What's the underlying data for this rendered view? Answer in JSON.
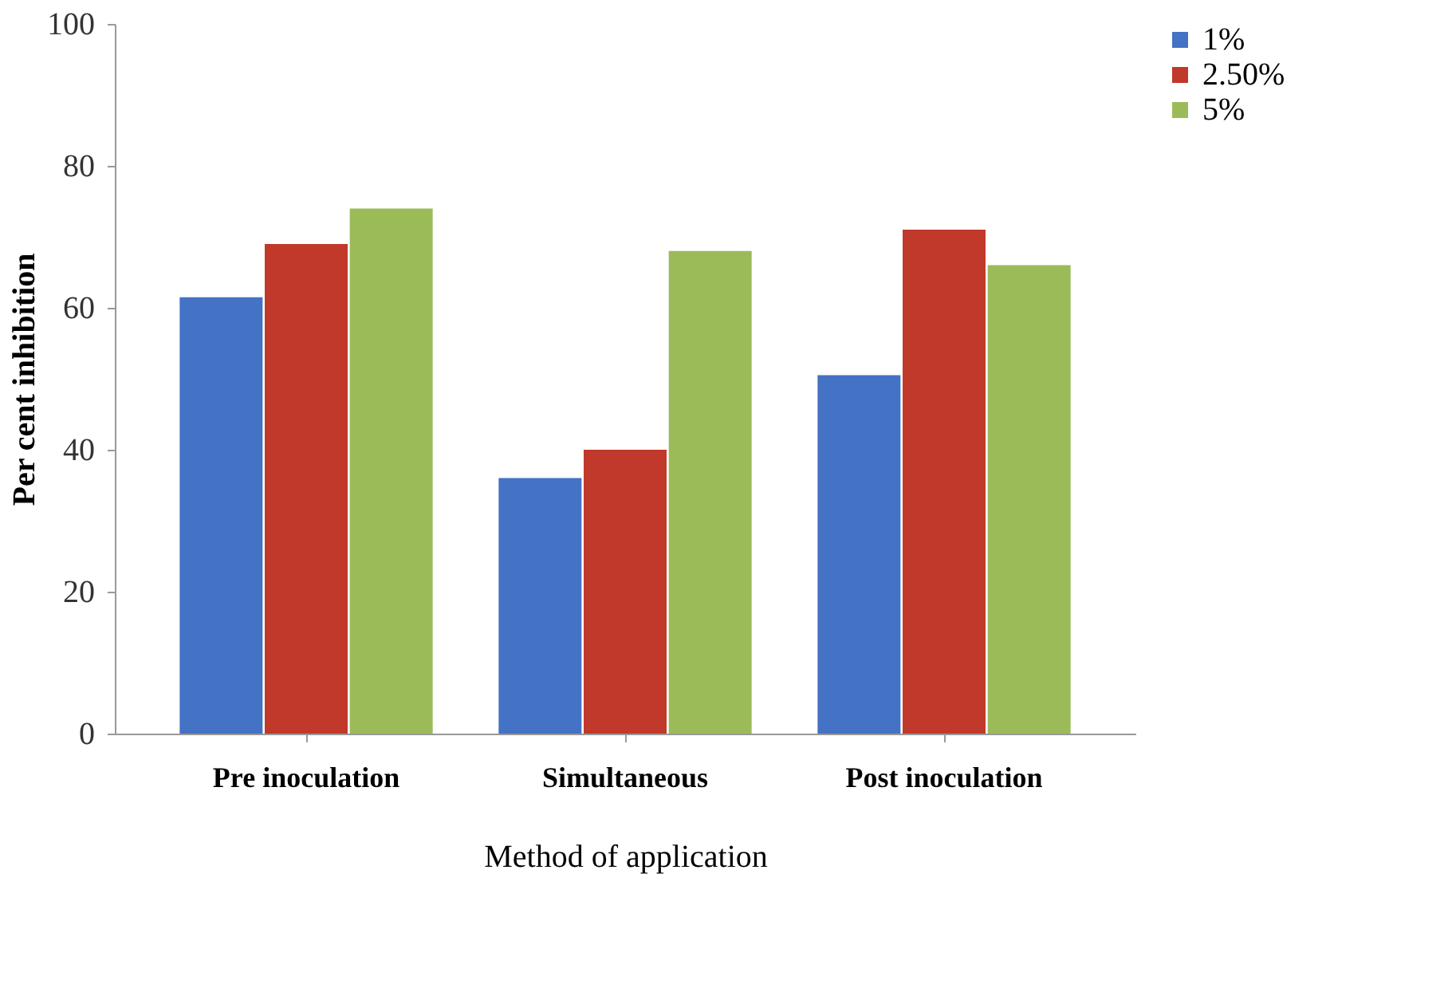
{
  "chart_data": {
    "type": "bar",
    "xlabel": "Method of application",
    "ylabel": "Per cent inhibition",
    "categories": [
      "Pre inoculation",
      "Simultaneous",
      "Post inoculation"
    ],
    "series": [
      {
        "name": "1%",
        "color": "#4472c4",
        "values": [
          61.5,
          36,
          50.5
        ]
      },
      {
        "name": "2.50%",
        "color": "#c0392b",
        "values": [
          69,
          40,
          71
        ]
      },
      {
        "name": "5%",
        "color": "#9bbb59",
        "values": [
          74,
          68,
          66
        ]
      }
    ],
    "ylim": [
      0,
      100
    ],
    "yticks": [
      0,
      20,
      40,
      60,
      80,
      100
    ],
    "grid": false,
    "legend": "right"
  }
}
